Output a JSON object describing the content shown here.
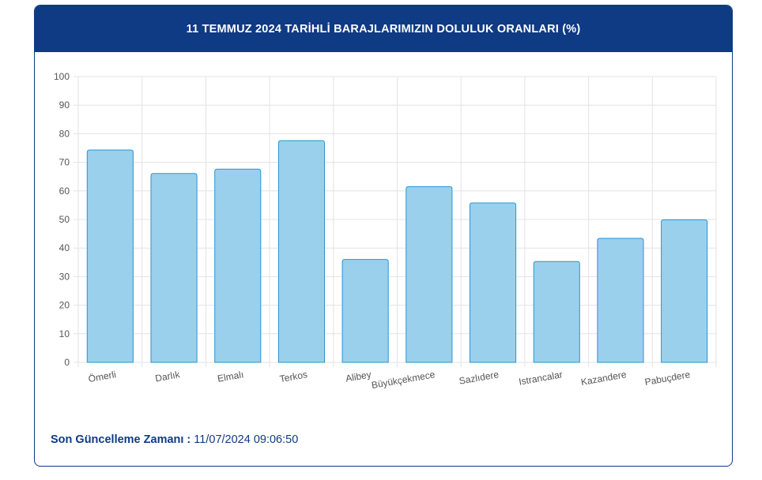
{
  "header": {
    "title": "11 TEMMUZ 2024 TARİHLİ BARAJLARIMIZIN DOLULUK ORANLARI (%)"
  },
  "footer": {
    "label": "Son Güncelleme Zamanı :",
    "value": "11/07/2024 09:06:50"
  },
  "colors": {
    "header_bg": "#0f3a84",
    "bar_fill": "#9ad0ec",
    "bar_stroke": "#2a94cf",
    "grid": "#e3e3e3",
    "axis_text": "#555555"
  },
  "chart_data": {
    "type": "bar",
    "categories": [
      "Ömerli",
      "Darlık",
      "Elmalı",
      "Terkos",
      "Alibey",
      "Büyükçekmece",
      "Sazlıdere",
      "Istrancalar",
      "Kazandere",
      "Pabuçdere"
    ],
    "values": [
      74.3,
      66.1,
      67.6,
      77.6,
      36.0,
      61.5,
      55.8,
      35.3,
      43.4,
      49.9
    ],
    "ylim": [
      0,
      100
    ],
    "yticks": [
      0,
      10,
      20,
      30,
      40,
      50,
      60,
      70,
      80,
      90,
      100
    ],
    "grid": true
  }
}
